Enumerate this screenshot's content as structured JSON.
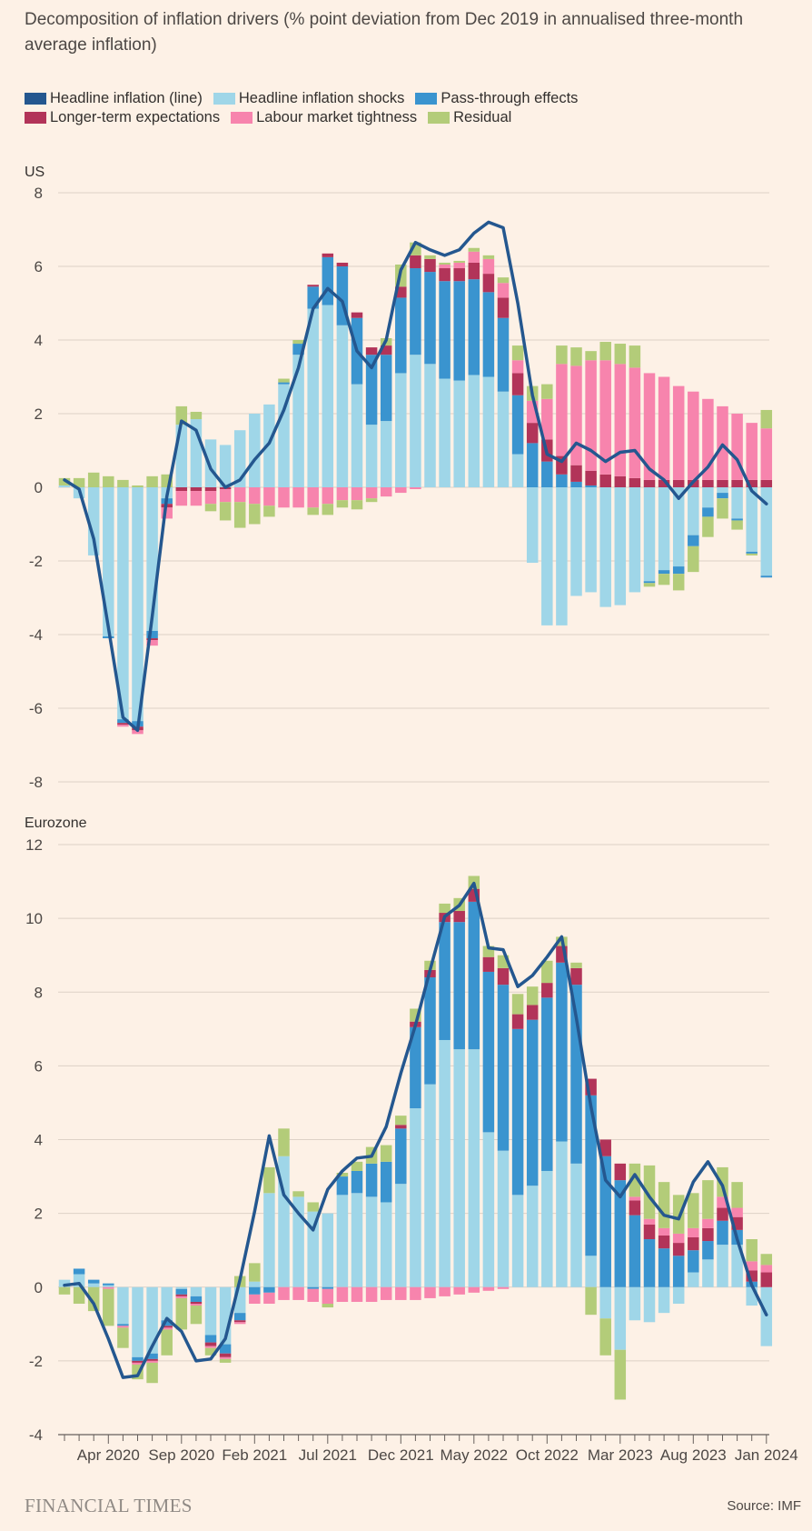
{
  "title": "Decomposition of inflation drivers (% point deviation from Dec 2019 in annualised three-month average inflation)",
  "footer": {
    "brand": "FINANCIAL TIMES",
    "source": "Source: IMF"
  },
  "legend": [
    {
      "label": "Headline inflation (line)",
      "color": "#24578f"
    },
    {
      "label": "Headline inflation shocks",
      "color": "#9fd6e8"
    },
    {
      "label": "Pass-through effects",
      "color": "#3a94cf"
    },
    {
      "label": "Longer-term expectations",
      "color": "#b23459"
    },
    {
      "label": "Labour market tightness",
      "color": "#f784ad"
    },
    {
      "label": "Residual",
      "color": "#b3cc79"
    }
  ],
  "chart_data": [
    {
      "type": "bar",
      "title": "US",
      "stacked": true,
      "ylim": [
        -8,
        8
      ],
      "yticks": [
        8,
        6,
        4,
        2,
        0,
        -2,
        -4,
        -6,
        -8
      ],
      "x_tick_labels": [
        "Apr 2020",
        "Sep 2020",
        "Feb 2021",
        "Jul 2021",
        "Dec 2021",
        "May 2022",
        "Oct 2022",
        "Mar 2023",
        "Aug 2023",
        "Jan 2024"
      ],
      "x_tick_positions": [
        3,
        8,
        13,
        18,
        23,
        28,
        33,
        38,
        43,
        48
      ],
      "categories": [
        "Jan 2020",
        "Feb 2020",
        "Mar 2020",
        "Apr 2020",
        "May 2020",
        "Jun 2020",
        "Jul 2020",
        "Aug 2020",
        "Sep 2020",
        "Oct 2020",
        "Nov 2020",
        "Dec 2020",
        "Jan 2021",
        "Feb 2021",
        "Mar 2021",
        "Apr 2021",
        "May 2021",
        "Jun 2021",
        "Jul 2021",
        "Aug 2021",
        "Sep 2021",
        "Oct 2021",
        "Nov 2021",
        "Dec 2021",
        "Jan 2022",
        "Feb 2022",
        "Mar 2022",
        "Apr 2022",
        "May 2022",
        "Jun 2022",
        "Jul 2022",
        "Aug 2022",
        "Sep 2022",
        "Oct 2022",
        "Nov 2022",
        "Dec 2022",
        "Jan 2023",
        "Feb 2023",
        "Mar 2023",
        "Apr 2023",
        "May 2023",
        "Jun 2023",
        "Jul 2023",
        "Aug 2023",
        "Sep 2023",
        "Oct 2023",
        "Nov 2023",
        "Dec 2023",
        "Jan 2024"
      ],
      "series": [
        {
          "name": "Headline inflation shocks",
          "color": "#9fd6e8",
          "values": [
            0.05,
            -0.3,
            -1.85,
            -4.05,
            -6.3,
            -6.35,
            -3.9,
            -0.3,
            1.7,
            1.85,
            1.3,
            1.15,
            1.55,
            2.0,
            2.25,
            2.8,
            3.6,
            4.85,
            4.95,
            4.4,
            2.8,
            1.7,
            1.8,
            3.1,
            3.6,
            3.35,
            2.95,
            2.9,
            3.05,
            3.0,
            2.6,
            0.9,
            -2.05,
            -3.75,
            -3.75,
            -2.95,
            -2.85,
            -3.25,
            -3.2,
            -2.85,
            -2.55,
            -2.25,
            -2.15,
            -1.3,
            -0.55,
            -0.15,
            -0.85,
            -1.75,
            -2.4
          ]
        },
        {
          "name": "Pass-through effects",
          "color": "#3a94cf",
          "values": [
            0,
            0,
            0,
            -0.05,
            -0.1,
            -0.15,
            -0.2,
            -0.15,
            0,
            0,
            0,
            0,
            0,
            0,
            0,
            0.05,
            0.3,
            0.6,
            1.3,
            1.6,
            1.8,
            1.9,
            1.8,
            2.05,
            2.35,
            2.5,
            2.65,
            2.7,
            2.6,
            2.3,
            2.0,
            1.6,
            1.2,
            0.7,
            0.35,
            0.15,
            0.05,
            0,
            0,
            0,
            -0.05,
            -0.1,
            -0.2,
            -0.3,
            -0.25,
            -0.15,
            -0.05,
            -0.05,
            -0.05
          ]
        },
        {
          "name": "Longer-term expectations",
          "color": "#b23459",
          "values": [
            0,
            0,
            0,
            0,
            -0.05,
            -0.1,
            -0.05,
            -0.1,
            -0.1,
            -0.1,
            -0.1,
            -0.05,
            0,
            0,
            0,
            0,
            0,
            0.05,
            0.1,
            0.1,
            0.15,
            0.2,
            0.25,
            0.3,
            0.35,
            0.35,
            0.35,
            0.35,
            0.45,
            0.5,
            0.55,
            0.6,
            0.55,
            0.6,
            0.5,
            0.45,
            0.4,
            0.35,
            0.3,
            0.25,
            0.2,
            0.2,
            0.2,
            0.2,
            0.2,
            0.2,
            0.2,
            0.2,
            0.2
          ]
        },
        {
          "name": "Labour market tightness",
          "color": "#f784ad",
          "values": [
            0,
            0,
            0,
            0,
            -0.05,
            -0.1,
            -0.15,
            -0.3,
            -0.4,
            -0.4,
            -0.35,
            -0.35,
            -0.4,
            -0.45,
            -0.5,
            -0.55,
            -0.55,
            -0.55,
            -0.45,
            -0.35,
            -0.35,
            -0.3,
            -0.25,
            -0.15,
            -0.05,
            0,
            0.1,
            0.15,
            0.3,
            0.4,
            0.4,
            0.35,
            0.6,
            1.1,
            2.5,
            2.7,
            3.0,
            3.1,
            3.05,
            3.0,
            2.9,
            2.8,
            2.55,
            2.4,
            2.2,
            2.0,
            1.8,
            1.55,
            1.4
          ]
        },
        {
          "name": "Residual",
          "color": "#b3cc79",
          "values": [
            0.2,
            0.25,
            0.4,
            0.3,
            0.2,
            0.05,
            0.3,
            0.35,
            0.5,
            0.2,
            -0.2,
            -0.5,
            -0.7,
            -0.55,
            -0.3,
            0.1,
            0.1,
            -0.2,
            -0.3,
            -0.2,
            -0.25,
            -0.1,
            0.2,
            0.6,
            0.35,
            0.1,
            0.05,
            0.05,
            0.1,
            0.1,
            0.15,
            0.4,
            0.4,
            0.4,
            0.5,
            0.5,
            0.25,
            0.5,
            0.55,
            0.6,
            -0.1,
            -0.3,
            -0.45,
            -0.7,
            -0.55,
            -0.55,
            -0.25,
            -0.05,
            0.5
          ]
        }
      ],
      "line": {
        "name": "Headline inflation (line)",
        "color": "#24578f",
        "values": [
          0.2,
          -0.05,
          -1.4,
          -3.8,
          -6.25,
          -6.6,
          -3.5,
          -0.25,
          1.8,
          1.55,
          0.5,
          0.0,
          0.2,
          0.75,
          1.2,
          2.1,
          3.25,
          4.85,
          5.4,
          5.05,
          3.7,
          3.25,
          4.0,
          5.9,
          6.65,
          6.45,
          6.3,
          6.45,
          6.9,
          7.2,
          7.05,
          5.0,
          2.5,
          0.9,
          0.7,
          1.2,
          1.0,
          0.7,
          0.95,
          1.0,
          0.5,
          0.2,
          -0.3,
          0.15,
          0.55,
          1.15,
          0.75,
          -0.1,
          -0.45
        ]
      }
    },
    {
      "type": "bar",
      "title": "Eurozone",
      "stacked": true,
      "ylim": [
        -4,
        12
      ],
      "yticks": [
        12,
        10,
        8,
        6,
        4,
        2,
        0,
        -2,
        -4
      ],
      "x_tick_labels": [
        "Apr 2020",
        "Sep 2020",
        "Feb 2021",
        "Jul 2021",
        "Dec 2021",
        "May 2022",
        "Oct 2022",
        "Mar 2023",
        "Aug 2023",
        "Jan 2024"
      ],
      "x_tick_positions": [
        3,
        8,
        13,
        18,
        23,
        28,
        33,
        38,
        43,
        48
      ],
      "categories": [
        "Jan 2020",
        "Feb 2020",
        "Mar 2020",
        "Apr 2020",
        "May 2020",
        "Jun 2020",
        "Jul 2020",
        "Aug 2020",
        "Sep 2020",
        "Oct 2020",
        "Nov 2020",
        "Dec 2020",
        "Jan 2021",
        "Feb 2021",
        "Mar 2021",
        "Apr 2021",
        "May 2021",
        "Jun 2021",
        "Jul 2021",
        "Aug 2021",
        "Sep 2021",
        "Oct 2021",
        "Nov 2021",
        "Dec 2021",
        "Jan 2022",
        "Feb 2022",
        "Mar 2022",
        "Apr 2022",
        "May 2022",
        "Jun 2022",
        "Jul 2022",
        "Aug 2022",
        "Sep 2022",
        "Oct 2022",
        "Nov 2022",
        "Dec 2022",
        "Jan 2023",
        "Feb 2023",
        "Mar 2023",
        "Apr 2023",
        "May 2023",
        "Jun 2023",
        "Jul 2023",
        "Aug 2023",
        "Sep 2023",
        "Oct 2023",
        "Nov 2023",
        "Dec 2023",
        "Jan 2024"
      ],
      "series": [
        {
          "name": "Headline inflation shocks",
          "color": "#9fd6e8",
          "values": [
            0.2,
            0.35,
            0.1,
            0.05,
            -1.0,
            -1.9,
            -1.8,
            -0.9,
            -0.05,
            -0.25,
            -1.3,
            -1.55,
            -0.7,
            0.15,
            2.55,
            3.55,
            2.45,
            2.05,
            2.0,
            2.5,
            2.55,
            2.45,
            2.3,
            2.8,
            4.85,
            5.5,
            6.7,
            6.45,
            6.45,
            4.2,
            3.7,
            2.5,
            2.75,
            3.15,
            3.95,
            3.35,
            0.85,
            -0.85,
            -1.7,
            -0.9,
            -0.95,
            -0.7,
            -0.45,
            0.4,
            0.75,
            1.15,
            1.15,
            -0.5,
            -1.6
          ]
        },
        {
          "name": "Pass-through effects",
          "color": "#3a94cf",
          "values": [
            0.0,
            0.15,
            0.1,
            0.05,
            -0.05,
            -0.1,
            -0.15,
            -0.15,
            -0.15,
            -0.15,
            -0.2,
            -0.25,
            -0.2,
            -0.2,
            -0.15,
            0,
            0,
            -0.05,
            -0.05,
            0.5,
            0.6,
            0.9,
            1.1,
            1.5,
            2.2,
            2.9,
            3.2,
            3.45,
            4.0,
            4.35,
            4.5,
            4.5,
            4.5,
            4.7,
            4.85,
            4.85,
            4.35,
            3.55,
            2.9,
            1.95,
            1.3,
            1.05,
            0.85,
            0.6,
            0.5,
            0.65,
            0.4,
            0.15,
            0
          ]
        },
        {
          "name": "Longer-term expectations",
          "color": "#b23459",
          "values": [
            0,
            0,
            0,
            0,
            0,
            -0.05,
            -0.05,
            -0.05,
            -0.05,
            -0.05,
            -0.1,
            -0.1,
            -0.05,
            0,
            0,
            0,
            0,
            0,
            0,
            0,
            0,
            0,
            0,
            0.1,
            0.15,
            0.2,
            0.25,
            0.3,
            0.35,
            0.4,
            0.45,
            0.4,
            0.4,
            0.4,
            0.45,
            0.45,
            0.45,
            0.45,
            0.45,
            0.4,
            0.4,
            0.35,
            0.35,
            0.35,
            0.35,
            0.35,
            0.35,
            0.3,
            0.4
          ]
        },
        {
          "name": "Labour market tightness",
          "color": "#f784ad",
          "values": [
            0,
            0,
            0,
            -0.05,
            -0.05,
            -0.05,
            -0.05,
            -0.05,
            -0.05,
            -0.05,
            -0.05,
            -0.05,
            -0.05,
            -0.25,
            -0.3,
            -0.35,
            -0.35,
            -0.35,
            -0.4,
            -0.4,
            -0.4,
            -0.4,
            -0.35,
            -0.35,
            -0.35,
            -0.3,
            -0.25,
            -0.2,
            -0.15,
            -0.1,
            -0.05,
            0,
            0,
            0,
            0,
            0,
            0,
            0,
            0,
            0.1,
            0.15,
            0.2,
            0.25,
            0.25,
            0.25,
            0.3,
            0.25,
            0.25,
            0.2
          ]
        },
        {
          "name": "Residual",
          "color": "#b3cc79",
          "values": [
            -0.2,
            -0.45,
            -0.65,
            -1.0,
            -0.55,
            -0.4,
            -0.55,
            -0.7,
            -0.85,
            -0.5,
            -0.2,
            -0.1,
            0.3,
            0.5,
            0.7,
            0.75,
            0.15,
            0.25,
            -0.1,
            0.1,
            0.25,
            0.45,
            0.45,
            0.25,
            0.35,
            0.25,
            0.25,
            0.35,
            0.35,
            0.3,
            0.35,
            0.55,
            0.5,
            0.6,
            0.25,
            0.15,
            -0.75,
            -1.0,
            -1.35,
            0.9,
            1.45,
            1.25,
            1.05,
            0.95,
            1.05,
            0.8,
            0.7,
            0.6,
            0.3
          ]
        }
      ],
      "line": {
        "name": "Headline inflation (line)",
        "color": "#24578f",
        "values": [
          0.05,
          0.1,
          -0.45,
          -1.4,
          -2.45,
          -2.4,
          -1.6,
          -0.85,
          -1.2,
          -2.0,
          -1.95,
          -1.4,
          0.2,
          2.05,
          4.1,
          2.5,
          2.0,
          1.55,
          2.65,
          3.15,
          3.5,
          3.55,
          4.35,
          5.8,
          7.1,
          8.6,
          10.05,
          10.35,
          10.95,
          9.2,
          9.15,
          8.15,
          8.45,
          8.95,
          9.5,
          7.3,
          4.9,
          2.9,
          2.45,
          3.05,
          2.45,
          1.95,
          1.85,
          2.85,
          3.4,
          2.75,
          1.3,
          0.05,
          -0.75
        ]
      }
    }
  ]
}
